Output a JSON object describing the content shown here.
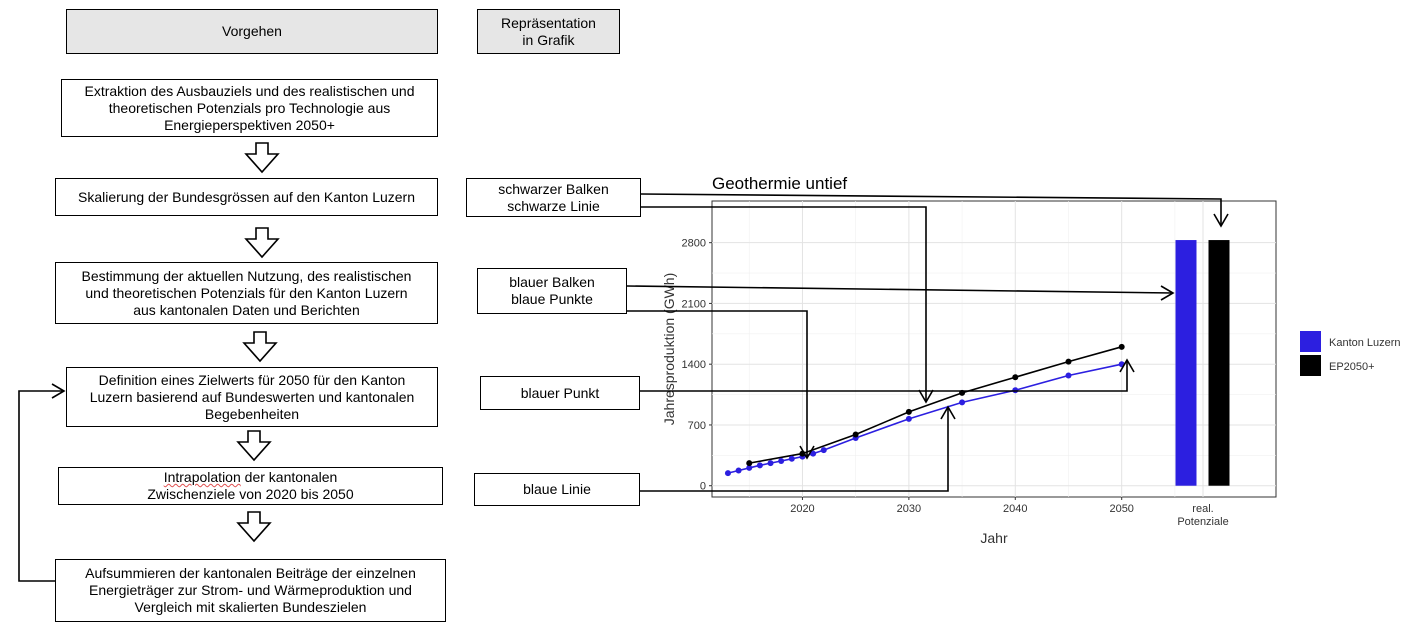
{
  "header": {
    "vorgehen": "Vorgehen",
    "repraesentation": "Repräsentation\nin Grafik"
  },
  "steps": [
    "Extraktion des Ausbauziels und des realistischen und\ntheoretischen Potenzials pro Technologie aus\nEnergieperspektiven 2050+",
    "Skalierung der Bundesgrössen auf den Kanton Luzern",
    "Bestimmung der aktuellen Nutzung, des realistischen\nund theoretischen Potenzials für den Kanton Luzern\naus kantonalen Daten und Berichten",
    "Definition eines Zielwerts für 2050 für den Kanton\nLuzern basierend auf Bundeswerten und kantonalen\nBegebenheiten",
    "Zwischenziele von 2020 bis 2050",
    "Aufsummieren der kantonalen Beiträge der einzelnen\nEnergieträger zur Strom- und Wärmeproduktion und\nVergleich mit skalierten Bundeszielen"
  ],
  "step5_first_line": "Intrapolation der kantonalen",
  "labels": [
    "schwarzer Balken\nschwarze Linie",
    "blauer Balken\nblaue Punkte",
    "blauer Punkt",
    "blaue Linie"
  ],
  "colors": {
    "blue": "#2c1fe0",
    "black": "#000000",
    "header_fill": "#e6e6e6"
  },
  "chart_data": {
    "type": "line",
    "title": "Geothermie untief",
    "xlabel": "Jahr",
    "ylabel": "Jahresproduktion (GWh)",
    "xlim": [
      2011.5,
      2064.5
    ],
    "ylim": [
      -130,
      3280
    ],
    "xticks": [
      2020,
      2030,
      2040,
      2050
    ],
    "yticks": [
      0,
      700,
      1400,
      2100,
      2800
    ],
    "extra_category_label": "real.\nPotenziale",
    "series": [
      {
        "name": "Kanton Luzern",
        "color": "#2c1fe0",
        "x": [
          2013,
          2014,
          2015,
          2016,
          2017,
          2018,
          2019,
          2020,
          2021,
          2022,
          2025,
          2030,
          2035,
          2040,
          2045,
          2050
        ],
        "y": [
          145,
          175,
          205,
          235,
          260,
          285,
          310,
          335,
          370,
          410,
          550,
          770,
          960,
          1100,
          1270,
          1400
        ]
      },
      {
        "name": "EP2050+",
        "color": "#000000",
        "x": [
          2015,
          2020,
          2025,
          2030,
          2035,
          2040,
          2045,
          2050
        ],
        "y": [
          260,
          370,
          590,
          850,
          1070,
          1250,
          1430,
          1600
        ]
      }
    ],
    "bars": [
      {
        "series": "Kanton Luzern",
        "value": 2830
      },
      {
        "series": "EP2050+",
        "value": 2830
      }
    ],
    "legend": [
      "Kanton Luzern",
      "EP2050+"
    ],
    "legend_position": "right",
    "grid": true
  }
}
